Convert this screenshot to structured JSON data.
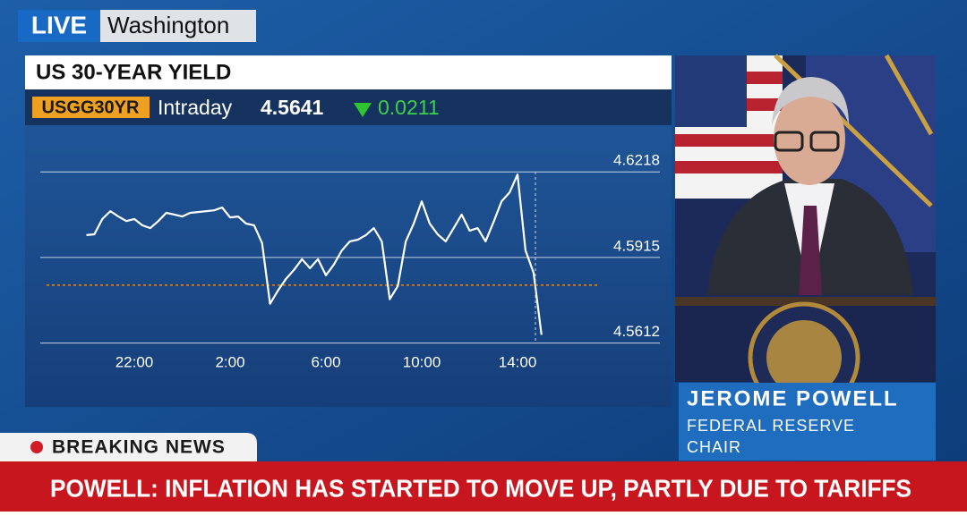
{
  "bug": {
    "live": "LIVE",
    "location": "Washington"
  },
  "ticker": {
    "symbol": "USGG30YR",
    "period": "Intraday",
    "price": "4.5641",
    "change": "0.0211"
  },
  "chart_data": {
    "type": "line",
    "title": "US 30-YEAR YIELD",
    "color": "#ffffff",
    "categories": [
      null,
      null,
      null,
      null,
      null,
      null,
      "22:00",
      null,
      null,
      null,
      null,
      null,
      null,
      null,
      null,
      null,
      null,
      null,
      "2:00",
      null,
      null,
      null,
      null,
      null,
      null,
      null,
      null,
      null,
      null,
      null,
      "6:00",
      null,
      null,
      null,
      null,
      null,
      null,
      null,
      null,
      null,
      null,
      null,
      "10:00",
      null,
      null,
      null,
      null,
      null,
      null,
      null,
      null,
      null,
      null,
      null,
      "14:00",
      null,
      null,
      null
    ],
    "values": [
      4.5994,
      4.5997,
      4.6051,
      4.6079,
      4.606,
      4.6044,
      4.6051,
      4.6029,
      4.6019,
      4.6044,
      4.6073,
      4.6067,
      4.606,
      4.6073,
      4.6076,
      4.6079,
      4.6082,
      4.6092,
      4.6057,
      4.606,
      4.6035,
      4.6029,
      4.5966,
      4.5751,
      4.5798,
      4.5839,
      4.5871,
      4.5909,
      4.5877,
      4.5909,
      4.5852,
      4.589,
      4.594,
      4.5972,
      4.5978,
      4.5994,
      4.6019,
      4.5972,
      4.5767,
      4.5814,
      4.5972,
      4.6035,
      4.6114,
      4.6035,
      4.5997,
      4.5972,
      4.6019,
      4.6067,
      4.601,
      4.6019,
      4.5972,
      4.6041,
      4.6114,
      4.6145,
      4.6209,
      4.594,
      4.5861,
      4.5641
    ],
    "ylim": [
      4.556,
      4.632
    ],
    "yticks": [
      4.5612,
      4.5915,
      4.6218
    ],
    "grid": true,
    "reference_line": 4.5817,
    "reference_color": "#e08a2a"
  },
  "lower_third": {
    "name": "JEROME POWELL",
    "title_line1": "FEDERAL RESERVE",
    "title_line2": "CHAIR"
  },
  "breaking": {
    "label": "BREAKING NEWS",
    "headline": "POWELL: INFLATION HAS STARTED TO MOVE UP, PARTLY DUE TO TARIFFS"
  }
}
